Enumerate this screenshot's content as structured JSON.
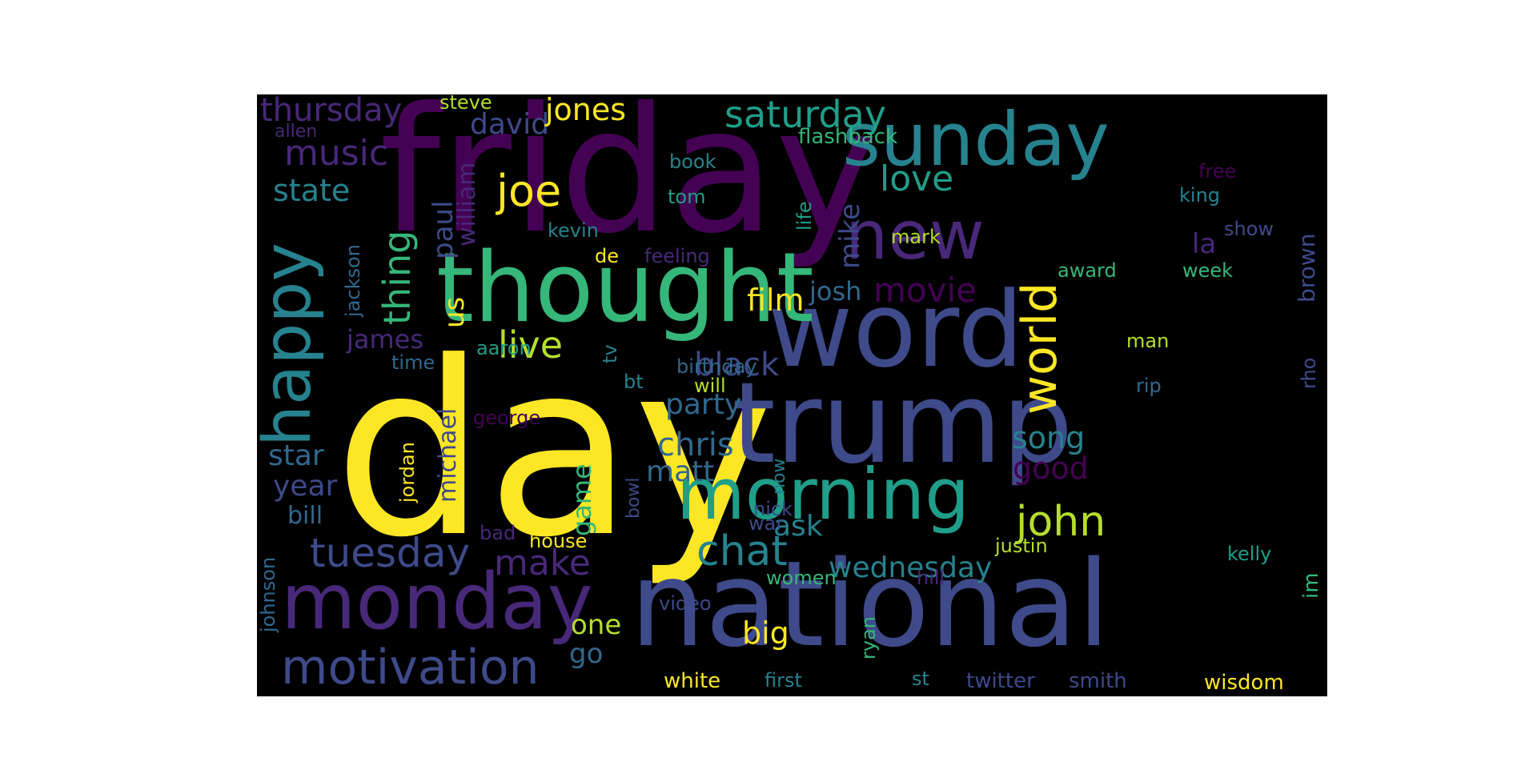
{
  "palette": {
    "canvas_background": "#ffffff",
    "cloud_background": "#000000",
    "yellow": "#fde725",
    "lime": "#b5de2b",
    "green": "#35b779",
    "teal": "#1f9e89",
    "blue_teal": "#26828e",
    "blue": "#31688e",
    "indigo": "#3e4a89",
    "violet": "#482878",
    "dark_purple": "#440154"
  },
  "words": {
    "day": "day",
    "friday": "friday",
    "national": "national",
    "trump": "trump",
    "word": "word",
    "thought": "thought",
    "monday": "monday",
    "sunday": "sunday",
    "morning": "morning",
    "new": "new",
    "happy": "happy",
    "world": "world",
    "motivation": "motivation",
    "tuesday": "tuesday",
    "saturday": "saturday",
    "john": "john",
    "chat": "chat",
    "live": "live",
    "thursday": "thursday",
    "music": "music",
    "love": "love",
    "joe": "joe",
    "movie": "movie",
    "wednesday": "wednesday",
    "thing": "thing",
    "david": "david",
    "jones": "jones",
    "state": "state",
    "make": "make",
    "black": "black",
    "chris": "chris",
    "film": "film",
    "big": "big",
    "song": "song",
    "good": "good",
    "michael": "michael",
    "paul": "paul",
    "william": "william",
    "mike": "mike",
    "party": "party",
    "matt": "matt",
    "game": "game",
    "ask": "ask",
    "josh": "josh",
    "james": "james",
    "year": "year",
    "star": "star",
    "bill": "bill",
    "one": "one",
    "go": "go",
    "us": "us",
    "brown": "brown",
    "im": "im",
    "twitter": "twitter",
    "smith": "smith",
    "flashback": "flashback",
    "jackson": "jackson",
    "white": "white",
    "wisdom": "wisdom",
    "justin": "justin",
    "women": "women",
    "house": "house",
    "tom": "tom",
    "kevin": "kevin",
    "book": "book",
    "feeling": "feeling",
    "steve": "steve",
    "allen": "allen",
    "la": "la",
    "free": "free",
    "king": "king",
    "show": "show",
    "award": "award",
    "week": "week",
    "mark": "mark",
    "life": "life",
    "de": "de",
    "aaron": "aaron",
    "time": "time",
    "birthday": "birthday",
    "will": "will",
    "bt": "bt",
    "tv": "tv",
    "george": "george",
    "jordan": "jordan",
    "bowl": "bowl",
    "now": "now",
    "nick": "nick",
    "war": "war",
    "bad": "bad",
    "johnson": "johnson",
    "video": "video",
    "ryan": "ryan",
    "first": "first",
    "st": "st",
    "man": "man",
    "rip": "rip",
    "rho": "rho",
    "hill": "hill",
    "kelly": "kelly"
  }
}
